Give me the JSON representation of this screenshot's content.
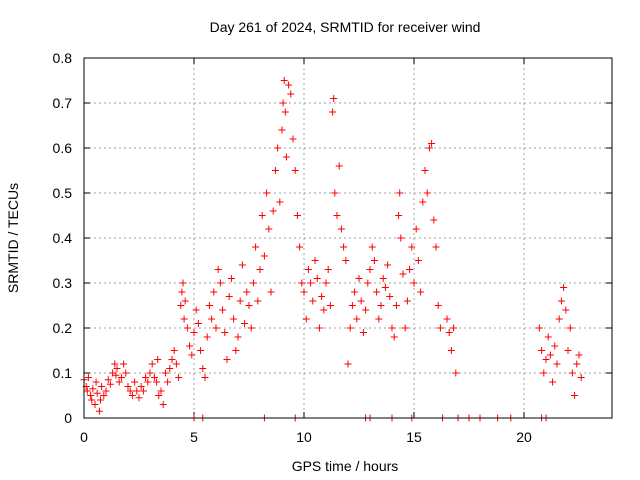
{
  "chart_data": {
    "type": "scatter",
    "title": "Day 261 of 2024, SRMTID for receiver wind",
    "xlabel": "GPS time / hours",
    "ylabel": "SRMTID / TECUs",
    "xlim": [
      0,
      24
    ],
    "ylim": [
      0,
      0.8
    ],
    "grid": true,
    "marker": "+",
    "series_color": "#ff0000",
    "x_ticks": [
      0,
      5,
      10,
      15,
      20
    ],
    "x_tick_labels": [
      "0",
      "5",
      "10",
      "15",
      "20"
    ],
    "y_ticks": [
      0,
      0.1,
      0.2,
      0.3,
      0.4,
      0.5,
      0.6,
      0.7,
      0.8
    ],
    "y_tick_labels": [
      "0",
      "0.1",
      "0.2",
      "0.3",
      "0.4",
      "0.5",
      "0.6",
      "0.7",
      "0.8"
    ],
    "series": [
      {
        "name": "SRMTID",
        "points": [
          [
            0.0,
            0.085
          ],
          [
            0.1,
            0.07
          ],
          [
            0.15,
            0.06
          ],
          [
            0.2,
            0.09
          ],
          [
            0.3,
            0.05
          ],
          [
            0.35,
            0.04
          ],
          [
            0.4,
            0.065
          ],
          [
            0.5,
            0.03
          ],
          [
            0.55,
            0.08
          ],
          [
            0.6,
            0.055
          ],
          [
            0.7,
            0.015
          ],
          [
            0.75,
            0.04
          ],
          [
            0.8,
            0.07
          ],
          [
            0.9,
            0.05
          ],
          [
            1.0,
            0.06
          ],
          [
            1.1,
            0.085
          ],
          [
            1.2,
            0.075
          ],
          [
            1.3,
            0.1
          ],
          [
            1.4,
            0.12
          ],
          [
            1.45,
            0.095
          ],
          [
            1.5,
            0.11
          ],
          [
            1.6,
            0.08
          ],
          [
            1.7,
            0.09
          ],
          [
            1.8,
            0.12
          ],
          [
            1.9,
            0.1
          ],
          [
            2.0,
            0.07
          ],
          [
            2.1,
            0.06
          ],
          [
            2.2,
            0.05
          ],
          [
            2.3,
            0.08
          ],
          [
            2.4,
            0.06
          ],
          [
            2.5,
            0.045
          ],
          [
            2.6,
            0.07
          ],
          [
            2.7,
            0.06
          ],
          [
            2.8,
            0.09
          ],
          [
            2.9,
            0.08
          ],
          [
            3.0,
            0.1
          ],
          [
            3.1,
            0.12
          ],
          [
            3.2,
            0.09
          ],
          [
            3.3,
            0.08
          ],
          [
            3.35,
            0.13
          ],
          [
            3.4,
            0.05
          ],
          [
            3.5,
            0.06
          ],
          [
            3.6,
            0.03
          ],
          [
            3.7,
            0.1
          ],
          [
            3.8,
            0.08
          ],
          [
            3.9,
            0.11
          ],
          [
            4.0,
            0.13
          ],
          [
            4.1,
            0.15
          ],
          [
            4.2,
            0.12
          ],
          [
            4.3,
            0.09
          ],
          [
            4.4,
            0.25
          ],
          [
            4.45,
            0.28
          ],
          [
            4.5,
            0.3
          ],
          [
            4.55,
            0.22
          ],
          [
            4.6,
            0.26
          ],
          [
            4.7,
            0.2
          ],
          [
            4.8,
            0.16
          ],
          [
            4.9,
            0.14
          ],
          [
            5.0,
            0.19
          ],
          [
            5.1,
            0.24
          ],
          [
            5.2,
            0.21
          ],
          [
            5.3,
            0.15
          ],
          [
            5.4,
            0.11
          ],
          [
            5.5,
            0.09
          ],
          [
            5.6,
            0.18
          ],
          [
            5.7,
            0.25
          ],
          [
            5.8,
            0.22
          ],
          [
            5.9,
            0.28
          ],
          [
            6.0,
            0.2
          ],
          [
            6.1,
            0.33
          ],
          [
            6.2,
            0.3
          ],
          [
            6.3,
            0.24
          ],
          [
            6.4,
            0.19
          ],
          [
            6.5,
            0.13
          ],
          [
            6.6,
            0.27
          ],
          [
            6.7,
            0.31
          ],
          [
            6.8,
            0.22
          ],
          [
            6.9,
            0.15
          ],
          [
            7.0,
            0.18
          ],
          [
            7.1,
            0.26
          ],
          [
            7.2,
            0.34
          ],
          [
            7.3,
            0.21
          ],
          [
            7.4,
            0.28
          ],
          [
            7.5,
            0.25
          ],
          [
            7.6,
            0.2
          ],
          [
            7.7,
            0.3
          ],
          [
            7.8,
            0.38
          ],
          [
            7.9,
            0.26
          ],
          [
            8.0,
            0.33
          ],
          [
            8.1,
            0.45
          ],
          [
            8.2,
            0.36
          ],
          [
            8.3,
            0.5
          ],
          [
            8.4,
            0.42
          ],
          [
            8.5,
            0.28
          ],
          [
            8.6,
            0.46
          ],
          [
            8.7,
            0.55
          ],
          [
            8.8,
            0.6
          ],
          [
            8.9,
            0.48
          ],
          [
            9.0,
            0.64
          ],
          [
            9.05,
            0.7
          ],
          [
            9.1,
            0.75
          ],
          [
            9.15,
            0.68
          ],
          [
            9.2,
            0.58
          ],
          [
            9.3,
            0.74
          ],
          [
            9.4,
            0.72
          ],
          [
            9.5,
            0.62
          ],
          [
            9.6,
            0.55
          ],
          [
            9.7,
            0.45
          ],
          [
            9.8,
            0.38
          ],
          [
            9.9,
            0.3
          ],
          [
            10.0,
            0.28
          ],
          [
            10.1,
            0.22
          ],
          [
            10.2,
            0.33
          ],
          [
            10.3,
            0.3
          ],
          [
            10.4,
            0.26
          ],
          [
            10.5,
            0.35
          ],
          [
            10.6,
            0.31
          ],
          [
            10.7,
            0.2
          ],
          [
            10.8,
            0.27
          ],
          [
            10.9,
            0.24
          ],
          [
            11.0,
            0.3
          ],
          [
            11.1,
            0.33
          ],
          [
            11.2,
            0.25
          ],
          [
            11.3,
            0.68
          ],
          [
            11.35,
            0.71
          ],
          [
            11.4,
            0.5
          ],
          [
            11.5,
            0.45
          ],
          [
            11.6,
            0.56
          ],
          [
            11.7,
            0.42
          ],
          [
            11.8,
            0.38
          ],
          [
            11.9,
            0.35
          ],
          [
            12.0,
            0.12
          ],
          [
            12.1,
            0.2
          ],
          [
            12.2,
            0.25
          ],
          [
            12.3,
            0.28
          ],
          [
            12.4,
            0.22
          ],
          [
            12.5,
            0.31
          ],
          [
            12.6,
            0.26
          ],
          [
            12.7,
            0.19
          ],
          [
            12.8,
            0.24
          ],
          [
            12.9,
            0.3
          ],
          [
            13.0,
            0.33
          ],
          [
            13.1,
            0.38
          ],
          [
            13.2,
            0.35
          ],
          [
            13.3,
            0.28
          ],
          [
            13.4,
            0.22
          ],
          [
            13.5,
            0.25
          ],
          [
            13.6,
            0.31
          ],
          [
            13.7,
            0.29
          ],
          [
            13.8,
            0.34
          ],
          [
            13.9,
            0.27
          ],
          [
            14.0,
            0.2
          ],
          [
            14.1,
            0.18
          ],
          [
            14.2,
            0.25
          ],
          [
            14.3,
            0.45
          ],
          [
            14.35,
            0.5
          ],
          [
            14.4,
            0.4
          ],
          [
            14.5,
            0.32
          ],
          [
            14.6,
            0.2
          ],
          [
            14.7,
            0.26
          ],
          [
            14.8,
            0.33
          ],
          [
            14.9,
            0.38
          ],
          [
            15.0,
            0.3
          ],
          [
            15.1,
            0.42
          ],
          [
            15.2,
            0.35
          ],
          [
            15.3,
            0.28
          ],
          [
            15.4,
            0.48
          ],
          [
            15.5,
            0.55
          ],
          [
            15.6,
            0.5
          ],
          [
            15.7,
            0.6
          ],
          [
            15.8,
            0.61
          ],
          [
            15.9,
            0.44
          ],
          [
            16.0,
            0.38
          ],
          [
            16.1,
            0.25
          ],
          [
            16.2,
            0.2
          ],
          [
            16.5,
            0.22
          ],
          [
            16.6,
            0.19
          ],
          [
            16.7,
            0.15
          ],
          [
            16.8,
            0.2
          ],
          [
            16.9,
            0.1
          ],
          [
            20.7,
            0.2
          ],
          [
            20.8,
            0.15
          ],
          [
            20.9,
            0.1
          ],
          [
            21.0,
            0.13
          ],
          [
            21.1,
            0.18
          ],
          [
            21.2,
            0.14
          ],
          [
            21.3,
            0.08
          ],
          [
            21.4,
            0.16
          ],
          [
            21.5,
            0.12
          ],
          [
            21.6,
            0.22
          ],
          [
            21.7,
            0.26
          ],
          [
            21.8,
            0.29
          ],
          [
            21.9,
            0.24
          ],
          [
            22.0,
            0.15
          ],
          [
            22.1,
            0.2
          ],
          [
            22.2,
            0.1
          ],
          [
            22.3,
            0.05
          ],
          [
            22.4,
            0.12
          ],
          [
            22.5,
            0.14
          ],
          [
            22.6,
            0.09
          ]
        ],
        "zero_points": [
          5.0,
          5.4,
          8.2,
          9.6,
          12.8,
          13.0,
          14.0,
          14.9,
          16.3,
          17.0,
          17.5,
          18.0,
          18.8,
          19.4,
          20.8,
          21.0
        ]
      }
    ]
  }
}
